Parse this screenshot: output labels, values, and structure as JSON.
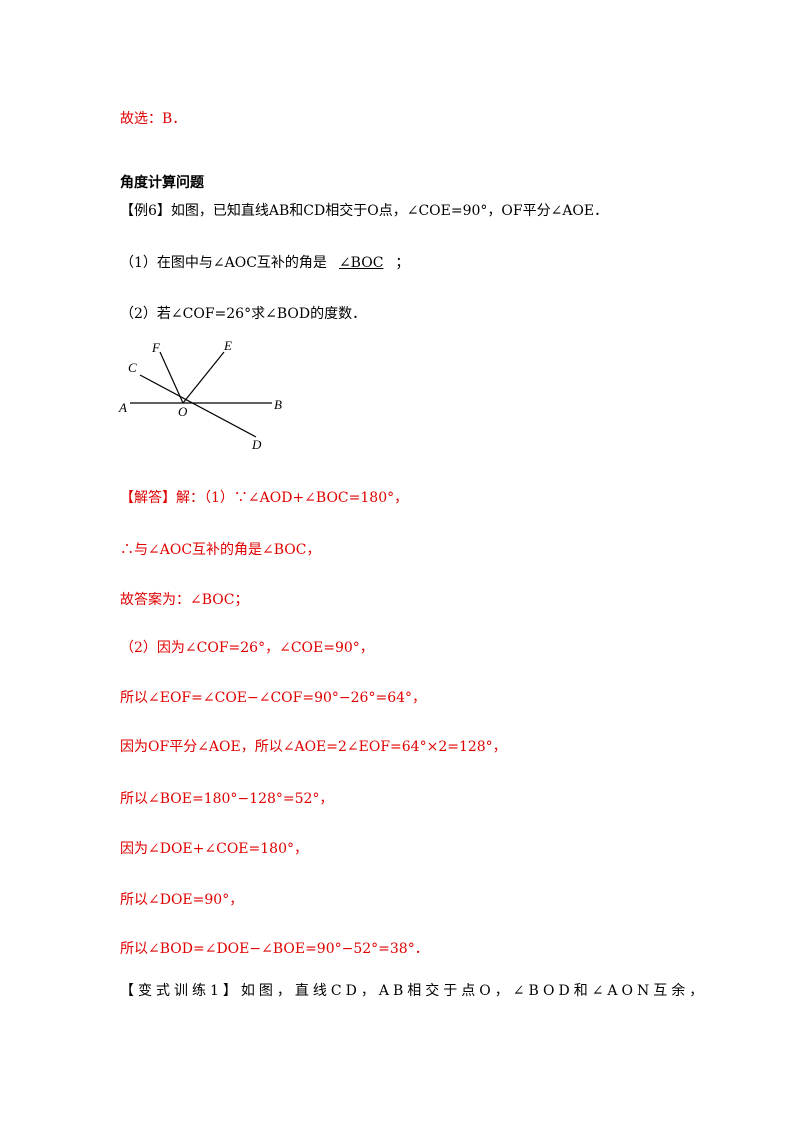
{
  "answer_line": "故选：B．",
  "section_title": "角度计算问题",
  "example": {
    "text": "【例6】如图，已知直线AB和CD相交于O点，∠COE=90°，OF平分∠AOE．",
    "q1_before": "（1）在图中与∠AOC互补的角是",
    "q1_blank": "∠BOC",
    "q1_after": "；",
    "q2": "（2）若∠COF=26°求∠BOD的度数．"
  },
  "figure": {
    "labels": [
      "F",
      "E",
      "C",
      "A",
      "O",
      "B",
      "D"
    ]
  },
  "solution": [
    "【解答】解：（1）∵∠AOD+∠BOC=180°，",
    "∴与∠AOC互补的角是∠BOC，",
    "故答案为：∠BOC；",
    "（2）因为∠COF=26°，∠COE=90°，",
    "所以∠EOF=∠COE−∠COF=90°−26°=64°，",
    "因为OF平分∠AOE，所以∠AOE=2∠EOF=64°×2=128°，",
    "所以∠BOE=180°−128°=52°，",
    "因为∠DOE+∠COE=180°，",
    "所以∠DOE=90°，",
    "所以∠BOD=∠DOE−∠BOE=90°−52°=38°．"
  ],
  "next_exercise": "【变式训练1】如图，直线CD，AB相交于点O，∠BOD和∠AON互余，"
}
